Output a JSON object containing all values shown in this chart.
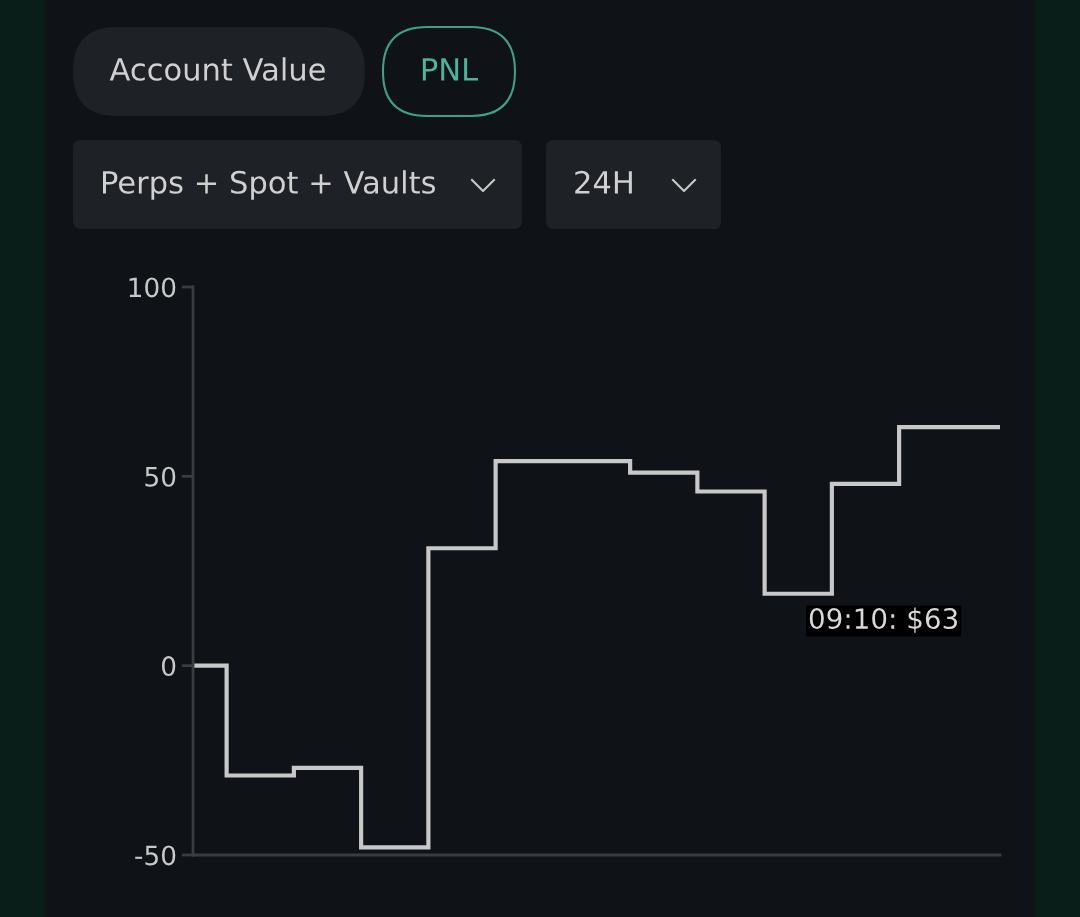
{
  "chart_data": {
    "type": "step",
    "categories": [
      null,
      null,
      null,
      null,
      null,
      null,
      null,
      null,
      null,
      null,
      null,
      null,
      null
    ],
    "series": [
      {
        "color": "#c8c8c8",
        "values": [
          0,
          -29,
          -27,
          -48,
          31,
          54,
          54,
          51,
          46,
          19,
          48,
          63,
          63
        ]
      }
    ],
    "ylim": [
      -50,
      100
    ],
    "yticks": [
      -50,
      0,
      50,
      100
    ],
    "tick_labels": "y",
    "grid": false,
    "legend": false,
    "marker": "none",
    "line_style": "solid",
    "annotations": [
      "Account Value",
      "PNL",
      "Perps + Spot + Vaults",
      "24H",
      "09:10: $63"
    ]
  }
}
